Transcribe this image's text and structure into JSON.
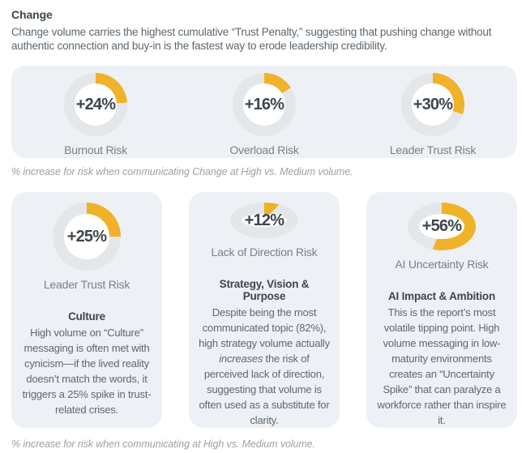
{
  "colors": {
    "accent_yellow": "#EFB229",
    "ring_gray": "#E4E7EA",
    "panel_background": "#EDF1F5",
    "heading_text": "#3E464C",
    "body_text": "#5E676E",
    "label_text": "#798087",
    "caption_text": "#9BA2A8"
  },
  "header": {
    "title": "Change",
    "intro": "Change volume carries the highest cumulative “Trust Penalty,” suggesting that pushing change without authentic connection and buy-in is the fastest way to erode leadership credibility."
  },
  "top_panel": {
    "donuts": [
      {
        "value": 24,
        "value_label": "+24%",
        "label": "Burnout Risk"
      },
      {
        "value": 16,
        "value_label": "+16%",
        "label": "Overload Risk"
      },
      {
        "value": 30,
        "value_label": "+30%",
        "label": "Leader Trust Risk"
      }
    ],
    "caption": "% increase for risk when communicating Change at High vs. Medium volume."
  },
  "cards": [
    {
      "value": 25,
      "value_label": "+25%",
      "label": "Leader Trust Risk",
      "heading": "Culture",
      "body_pre": "High volume on “Culture” messaging is often met with cynicism—if the lived reality doesn’t match the words, it triggers a 25% spike in trust-related crises.",
      "body_italic": "",
      "body_post": ""
    },
    {
      "value": 12,
      "value_label": "+12%",
      "label": "Lack of Direction Risk",
      "heading": "Strategy, Vision & Purpose",
      "body_pre": "Despite being the most communicated topic (82%), high strategy volume actually ",
      "body_italic": "increases",
      "body_post": " the risk of perceived lack of direction, suggesting that volume is often used as a substitute for clarity."
    },
    {
      "value": 56,
      "value_label": "+56%",
      "label": "AI Uncertainty Risk",
      "heading": "AI Impact & Ambition",
      "body_pre": "This is the report’s most volatile tipping point. High volume messaging in low-maturity environments creates an “Uncertainty Spike” that can paralyze a workforce rather than inspire it.",
      "body_italic": "",
      "body_post": ""
    }
  ],
  "bottom_caption": "% increase for risk when communicating at High vs. Medium volume.",
  "chart_data": [
    {
      "type": "pie",
      "subtype": "donut-gauge",
      "title": "Change",
      "categories": [
        "Burnout Risk",
        "Overload Risk",
        "Leader Trust Risk"
      ],
      "values": [
        24,
        16,
        30
      ],
      "unit": "% increase",
      "note": "% increase for risk when communicating Change at High vs. Medium volume. Each donut renders its value as a yellow arc starting at 12 o'clock, clockwise, against a gray ring (remainder to 100)."
    },
    {
      "type": "pie",
      "subtype": "donut-gauge",
      "title": "",
      "categories": [
        "Leader Trust Risk — Culture",
        "Lack of Direction Risk — Strategy, Vision & Purpose",
        "AI Uncertainty Risk — AI Impact & Ambition"
      ],
      "values": [
        25,
        12,
        56
      ],
      "unit": "% increase",
      "note": "% increase for risk when communicating at High vs. Medium volume."
    }
  ]
}
